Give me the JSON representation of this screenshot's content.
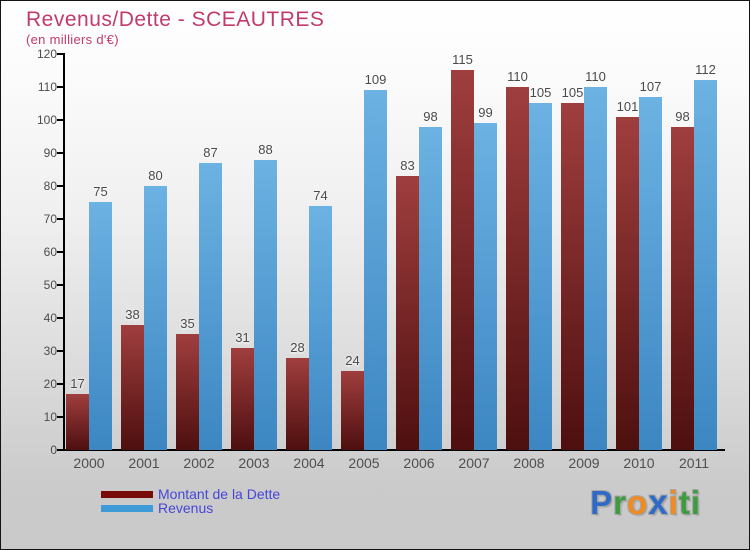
{
  "header": {
    "title": "Revenus/Dette - SCEAUTRES",
    "subtitle": "(en milliers d'€)"
  },
  "chart_data": {
    "type": "bar",
    "title": "Revenus/Dette - SCEAUTRES",
    "subtitle": "(en milliers d'€)",
    "categories": [
      "2000",
      "2001",
      "2002",
      "2003",
      "2004",
      "2005",
      "2006",
      "2007",
      "2008",
      "2009",
      "2010",
      "2011"
    ],
    "series": [
      {
        "name": "Montant de la Dette",
        "values": [
          17,
          38,
          35,
          31,
          28,
          24,
          83,
          115,
          110,
          105,
          101,
          98
        ]
      },
      {
        "name": "Revenus",
        "values": [
          75,
          80,
          87,
          88,
          74,
          109,
          98,
          99,
          105,
          110,
          107,
          112
        ]
      }
    ],
    "ylim": [
      0,
      120
    ],
    "ytick_step": 10,
    "grid": false,
    "legend_position": "bottom-left",
    "value_labels_shown": true
  },
  "colors": {
    "title_text": "#c23a6c",
    "debt_bar_top": "#a03e3e",
    "debt_bar_bottom": "#4e0f0f",
    "revenue_bar_top": "#6cb2e2",
    "revenue_bar_bottom": "#3c86c2",
    "legend_debt_swatch": "#7a0b0b",
    "legend_revenue_swatch": "#3f9bd8",
    "legend_text": "#4646d8",
    "axis": "#000000",
    "tick_label_text": "#4c4c4c"
  },
  "legend": {
    "items": [
      {
        "label": "Montant de la Dette"
      },
      {
        "label": "Revenus"
      }
    ]
  },
  "logo": {
    "name": "Proxiti",
    "letters": [
      {
        "char": "P",
        "color": "#2f6bc6"
      },
      {
        "char": "r",
        "color": "#3f9b3f"
      },
      {
        "char": "o",
        "color": "#f28a1e"
      },
      {
        "char": "x",
        "color": "#2f6bc6"
      },
      {
        "char": "i",
        "color": "#f28a1e"
      },
      {
        "char": "t",
        "color": "#3f9b3f"
      },
      {
        "char": "i",
        "color": "#3f9b3f"
      }
    ]
  }
}
